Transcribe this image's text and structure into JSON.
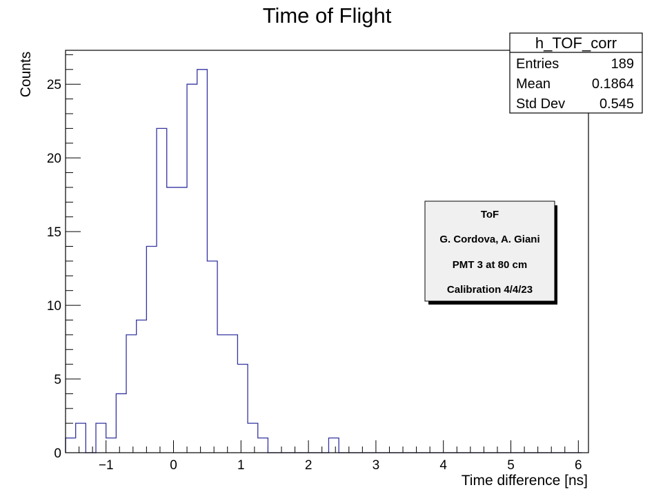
{
  "chart_data": {
    "type": "histogram",
    "title": "Time of Flight",
    "xlabel": "Time difference [ns]",
    "ylabel": "Counts",
    "xlim": [
      -1.6,
      6.15
    ],
    "ylim": [
      0,
      27.3
    ],
    "bin_width": 0.15,
    "bin_start": -1.6,
    "values": [
      1,
      2,
      0,
      2,
      1,
      4,
      8,
      9,
      14,
      22,
      18,
      18,
      25,
      26,
      13,
      8,
      8,
      6,
      2,
      1,
      0,
      0,
      0,
      0,
      0,
      0,
      1,
      0,
      0,
      0,
      0,
      0,
      0,
      0,
      0,
      0,
      0,
      0,
      0,
      0,
      0,
      0,
      0,
      0,
      0,
      0,
      0,
      0,
      0,
      0,
      0
    ],
    "x_ticks": [
      "−1",
      "0",
      "1",
      "2",
      "3",
      "4",
      "5",
      "6"
    ],
    "x_tick_values": [
      -1,
      0,
      1,
      2,
      3,
      4,
      5,
      6
    ],
    "y_ticks": [
      "0",
      "5",
      "10",
      "15",
      "20",
      "25"
    ],
    "y_tick_values": [
      0,
      5,
      10,
      15,
      20,
      25
    ],
    "line_color": "#3333a0",
    "grid": false
  },
  "stats_box": {
    "title": "h_TOF_corr",
    "rows": [
      {
        "label": "Entries",
        "value": "189"
      },
      {
        "label": "Mean",
        "value": "0.1864"
      },
      {
        "label": "Std Dev",
        "value": "0.545"
      }
    ]
  },
  "note_box": {
    "lines": [
      "ToF",
      "G. Cordova, A. Giani",
      "PMT 3 at 80 cm",
      "Calibration 4/4/23"
    ]
  }
}
